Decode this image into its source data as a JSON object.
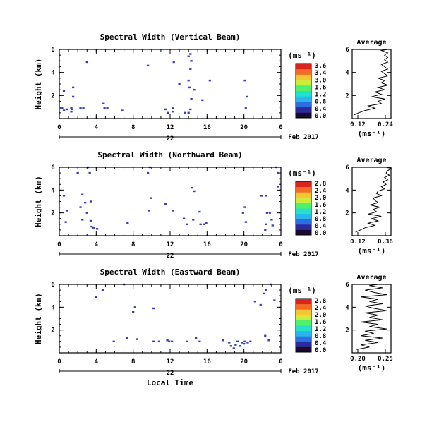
{
  "chart_data": [
    {
      "type": "heatmap",
      "title": "Spectral Width (Vertical Beam)",
      "ylabel": "Height (km)",
      "yticks": [
        "6",
        "4",
        "2"
      ],
      "ylim": [
        0,
        6
      ],
      "xticks": [
        "0",
        "4",
        "8",
        "12",
        "16",
        "20",
        "0"
      ],
      "xlim": [
        0,
        24
      ],
      "day_label": "22",
      "date_label": "Feb 2017",
      "colorbar": {
        "unit": "(ms⁻¹)",
        "ticks": [
          "3.6",
          "3.4",
          "3.0",
          "1.6",
          "1.2",
          "0.8",
          "0.4",
          "0.0"
        ]
      },
      "cells": [
        [
          0.3,
          0.9
        ],
        [
          1.3,
          0.9
        ],
        [
          1.3,
          0.6
        ],
        [
          1.4,
          0.8
        ],
        [
          0.5,
          0.7
        ],
        [
          2.3,
          0.9
        ],
        [
          2.6,
          0.9
        ],
        [
          4.8,
          1.3
        ],
        [
          4.9,
          0.9
        ],
        [
          5.2,
          0.9
        ],
        [
          6.8,
          0.7
        ],
        [
          0.5,
          2.4
        ],
        [
          1.5,
          2.7
        ],
        [
          1.5,
          1.9
        ],
        [
          3.0,
          4.9
        ],
        [
          9.6,
          4.6
        ],
        [
          11.5,
          0.8
        ],
        [
          11.8,
          0.5
        ],
        [
          12.3,
          0.9
        ],
        [
          12.3,
          0.6
        ],
        [
          12.4,
          4.9
        ],
        [
          13.6,
          0.5
        ],
        [
          14.0,
          0.5
        ],
        [
          14.2,
          0.8
        ],
        [
          14.0,
          5.4
        ],
        [
          14.2,
          5.6
        ],
        [
          14.3,
          5.0
        ],
        [
          14.2,
          4.3
        ],
        [
          14.0,
          3.3
        ],
        [
          14.1,
          2.7
        ],
        [
          14.3,
          1.7
        ],
        [
          14.6,
          2.5
        ],
        [
          15.5,
          1.6
        ],
        [
          16.3,
          3.3
        ],
        [
          13.0,
          3.0
        ],
        [
          20.2,
          0.9
        ],
        [
          20.3,
          1.9
        ],
        [
          20.1,
          3.3
        ],
        [
          0.2,
          0.9
        ],
        [
          0.8,
          0.8
        ]
      ],
      "average": {
        "title": "Average",
        "xticks": [
          "0.12",
          "0.24"
        ],
        "xlim": [
          0.12,
          0.24
        ],
        "xlabel": "(ms⁻¹)",
        "yticks": [
          "6",
          "4",
          "2"
        ],
        "x": [
          0.125,
          0.14,
          0.16,
          0.19,
          0.17,
          0.21,
          0.2,
          0.22,
          0.18,
          0.21,
          0.19,
          0.22,
          0.2,
          0.23,
          0.21,
          0.22,
          0.2,
          0.23,
          0.22,
          0.21,
          0.23,
          0.22,
          0.21,
          0.23,
          0.22,
          0.23,
          0.22,
          0.23,
          0.21,
          0.23
        ],
        "y": [
          0.3,
          0.5,
          0.7,
          0.9,
          1.1,
          1.3,
          1.5,
          1.7,
          1.9,
          2.1,
          2.3,
          2.5,
          2.7,
          2.9,
          3.1,
          3.3,
          3.5,
          3.7,
          3.9,
          4.1,
          4.3,
          4.5,
          4.7,
          4.9,
          5.1,
          5.3,
          5.5,
          5.7,
          5.9,
          6.0
        ]
      }
    },
    {
      "type": "heatmap",
      "title": "Spectral Width (Northward Beam)",
      "ylabel": "Height (km)",
      "yticks": [
        "6",
        "4",
        "2"
      ],
      "ylim": [
        0,
        6
      ],
      "xticks": [
        "0",
        "4",
        "8",
        "12",
        "16",
        "20",
        "0"
      ],
      "xlim": [
        0,
        24
      ],
      "day_label": "22",
      "date_label": "Feb 2017",
      "colorbar": {
        "unit": "(ms⁻¹)",
        "ticks": [
          "2.8",
          "2.4",
          "2.0",
          "1.6",
          "1.2",
          "0.8",
          "0.4",
          "0.0"
        ]
      },
      "cells": [
        [
          0.5,
          3.5
        ],
        [
          0.7,
          1.2
        ],
        [
          0.8,
          2.2
        ],
        [
          2.0,
          5.5
        ],
        [
          2.3,
          2.5
        ],
        [
          2.5,
          1.4
        ],
        [
          2.8,
          2.9
        ],
        [
          3.0,
          2.0
        ],
        [
          3.1,
          6.0
        ],
        [
          3.3,
          5.5
        ],
        [
          3.4,
          1.3
        ],
        [
          3.5,
          0.8
        ],
        [
          3.7,
          0.7
        ],
        [
          4.1,
          0.6
        ],
        [
          2.5,
          3.6
        ],
        [
          3.4,
          3.0
        ],
        [
          7.4,
          1.1
        ],
        [
          9.6,
          5.5
        ],
        [
          9.8,
          6.0
        ],
        [
          9.9,
          3.3
        ],
        [
          9.7,
          2.2
        ],
        [
          11.5,
          2.8
        ],
        [
          12.3,
          2.2
        ],
        [
          13.5,
          1.5
        ],
        [
          13.8,
          1.0
        ],
        [
          14.4,
          4.2
        ],
        [
          14.6,
          3.9
        ],
        [
          14.5,
          1.4
        ],
        [
          15.2,
          2.1
        ],
        [
          15.3,
          1.0
        ],
        [
          15.7,
          1.0
        ],
        [
          15.9,
          1.1
        ],
        [
          19.9,
          2.0
        ],
        [
          20.2,
          1.2
        ],
        [
          20.1,
          2.5
        ],
        [
          21.9,
          3.5
        ],
        [
          22.4,
          3.5
        ],
        [
          22.5,
          2.0
        ],
        [
          22.4,
          1.0
        ],
        [
          22.8,
          2.0
        ],
        [
          23.0,
          1.4
        ],
        [
          23.1,
          0.9
        ],
        [
          23.5,
          6.0
        ],
        [
          23.7,
          5.5
        ],
        [
          23.7,
          4.3
        ],
        [
          22.3,
          0.5
        ]
      ],
      "average": {
        "title": "Average",
        "xticks": [
          "0.12",
          "0.36"
        ],
        "xlim": [
          0.12,
          0.36
        ],
        "xlabel": "(ms⁻¹)",
        "yticks": [
          "6",
          "4",
          "2"
        ],
        "x": [
          0.14,
          0.17,
          0.2,
          0.26,
          0.22,
          0.28,
          0.24,
          0.3,
          0.22,
          0.27,
          0.25,
          0.29,
          0.23,
          0.28,
          0.26,
          0.25,
          0.3,
          0.27,
          0.28,
          0.32,
          0.3,
          0.33,
          0.31,
          0.34,
          0.32,
          0.35,
          0.33,
          0.34,
          0.36,
          0.33
        ],
        "y": [
          0.3,
          0.5,
          0.7,
          0.9,
          1.1,
          1.3,
          1.5,
          1.7,
          1.9,
          2.1,
          2.3,
          2.5,
          2.7,
          2.9,
          3.1,
          3.3,
          3.5,
          3.7,
          3.9,
          4.1,
          4.3,
          4.5,
          4.7,
          4.9,
          5.1,
          5.3,
          5.5,
          5.7,
          5.9,
          6.0
        ]
      }
    },
    {
      "type": "heatmap",
      "title": "Spectral Width (Eastward Beam)",
      "ylabel": "Height (km)",
      "yticks": [
        "6",
        "4",
        "2"
      ],
      "ylim": [
        0,
        6
      ],
      "xticks": [
        "0",
        "4",
        "8",
        "12",
        "16",
        "20",
        "0"
      ],
      "xlim": [
        0,
        24
      ],
      "day_label": "22",
      "date_label": "Feb 2017",
      "xlabel": "Local Time",
      "colorbar": {
        "unit": "(ms⁻¹)",
        "ticks": [
          "2.8",
          "2.4",
          "2.0",
          "1.6",
          "1.2",
          "0.8",
          "0.4",
          "0.0"
        ]
      },
      "cells": [
        [
          4.0,
          4.9
        ],
        [
          4.7,
          5.5
        ],
        [
          7.0,
          6.0
        ],
        [
          8.0,
          3.6
        ],
        [
          8.2,
          4.0
        ],
        [
          10.2,
          3.9
        ],
        [
          5.9,
          1.0
        ],
        [
          7.3,
          1.3
        ],
        [
          8.4,
          1.2
        ],
        [
          10.2,
          1.0
        ],
        [
          10.8,
          1.0
        ],
        [
          11.7,
          1.1
        ],
        [
          11.9,
          1.0
        ],
        [
          12.2,
          1.0
        ],
        [
          13.8,
          1.0
        ],
        [
          14.8,
          1.3
        ],
        [
          15.2,
          1.0
        ],
        [
          17.7,
          1.1
        ],
        [
          18.4,
          0.9
        ],
        [
          18.6,
          0.6
        ],
        [
          18.9,
          0.4
        ],
        [
          19.1,
          0.7
        ],
        [
          19.3,
          1.0
        ],
        [
          19.8,
          0.9
        ],
        [
          20.1,
          1.0
        ],
        [
          20.4,
          0.9
        ],
        [
          20.7,
          1.0
        ],
        [
          19.6,
          0.6
        ],
        [
          21.2,
          4.5
        ],
        [
          21.8,
          4.2
        ],
        [
          22.2,
          5.2
        ],
        [
          22.4,
          5.5
        ],
        [
          22.9,
          6.0
        ],
        [
          23.3,
          4.6
        ],
        [
          22.3,
          1.5
        ],
        [
          22.7,
          1.1
        ],
        [
          20.0,
          0.8
        ]
      ],
      "average": {
        "title": "Average",
        "xticks": [
          "0.20",
          "0.25"
        ],
        "xlim": [
          0.18,
          0.27
        ],
        "xlabel": "(ms⁻¹)",
        "yticks": [
          "6",
          "4",
          "2"
        ],
        "x": [
          0.19,
          0.22,
          0.2,
          0.24,
          0.21,
          0.25,
          0.2,
          0.23,
          0.21,
          0.26,
          0.22,
          0.24,
          0.2,
          0.25,
          0.22,
          0.24,
          0.21,
          0.26,
          0.23,
          0.21,
          0.25,
          0.22,
          0.24,
          0.2,
          0.26,
          0.23,
          0.21,
          0.25,
          0.22,
          0.24
        ],
        "y": [
          0.3,
          0.5,
          0.7,
          0.9,
          1.1,
          1.3,
          1.5,
          1.7,
          1.9,
          2.1,
          2.3,
          2.5,
          2.7,
          2.9,
          3.1,
          3.3,
          3.5,
          3.7,
          3.9,
          4.1,
          4.3,
          4.5,
          4.7,
          4.9,
          5.1,
          5.3,
          5.5,
          5.7,
          5.9,
          6.0
        ]
      }
    }
  ],
  "colors": {
    "cell": "#3a3fb8",
    "colorbar": [
      "#1a0a2e",
      "#2e2a9c",
      "#2b6fe0",
      "#27b7ee",
      "#25e1c8",
      "#4ff06a",
      "#cdeb3c",
      "#f7c531",
      "#f36b25",
      "#d8261f"
    ]
  }
}
